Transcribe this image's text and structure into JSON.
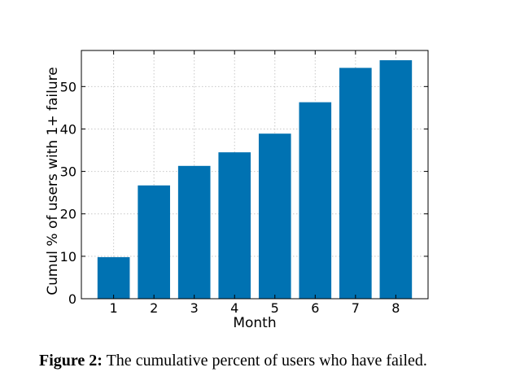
{
  "chart_data": {
    "type": "bar",
    "categories": [
      "1",
      "2",
      "3",
      "4",
      "5",
      "6",
      "7",
      "8"
    ],
    "values": [
      9.8,
      26.7,
      31.3,
      34.5,
      38.9,
      46.3,
      54.4,
      56.2
    ],
    "title": "",
    "xlabel": "Month",
    "ylabel": "Cumul % of users with 1+ failure",
    "ylim": [
      0,
      58.5
    ],
    "yticks": [
      0,
      10,
      20,
      30,
      40,
      50
    ],
    "grid": true,
    "bar_color": "#0072b2"
  },
  "caption": {
    "label": "Figure 2:",
    "text": "The cumulative percent of users who have failed."
  }
}
